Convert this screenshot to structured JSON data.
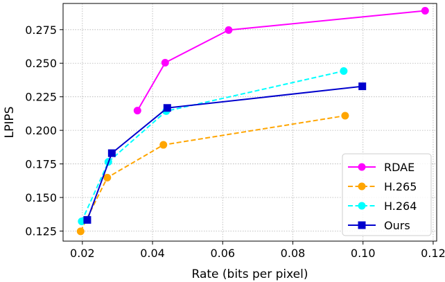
{
  "chart_data": {
    "type": "line",
    "title": "",
    "xlabel": "Rate (bits per pixel)",
    "ylabel": "LPIPS",
    "xlim": [
      0.0145,
      0.121
    ],
    "ylim": [
      0.1175,
      0.2945
    ],
    "x_ticks": [
      "0.02",
      "0.04",
      "0.06",
      "0.08",
      "0.10",
      "0.12"
    ],
    "x_tick_values": [
      0.02,
      0.04,
      0.06,
      0.08,
      0.1,
      0.12
    ],
    "y_ticks": [
      "0.125",
      "0.150",
      "0.175",
      "0.200",
      "0.225",
      "0.250",
      "0.275"
    ],
    "y_tick_values": [
      0.125,
      0.15,
      0.175,
      0.2,
      0.225,
      0.25,
      0.275
    ],
    "grid": true,
    "legend_position": "bottom-right",
    "series": [
      {
        "name": "RDAE",
        "color": "#ff00ff",
        "dashed": false,
        "marker": "circle",
        "x": [
          0.0357,
          0.0436,
          0.0617,
          0.1177
        ],
        "y": [
          0.2147,
          0.2504,
          0.2747,
          0.2891
        ]
      },
      {
        "name": "H.265",
        "color": "#ffa500",
        "dashed": true,
        "marker": "circle",
        "x": [
          0.0195,
          0.0271,
          0.0431,
          0.0949
        ],
        "y": [
          0.1248,
          0.1648,
          0.1892,
          0.2109
        ]
      },
      {
        "name": "H.264",
        "color": "#00ffff",
        "dashed": true,
        "marker": "circle",
        "x": [
          0.0198,
          0.0274,
          0.0439,
          0.0945
        ],
        "y": [
          0.1322,
          0.1765,
          0.2143,
          0.2442
        ]
      },
      {
        "name": "Ours",
        "color": "#0000cd",
        "dashed": false,
        "marker": "square",
        "x": [
          0.0214,
          0.0284,
          0.0442,
          0.0998
        ],
        "y": [
          0.1333,
          0.183,
          0.2167,
          0.2328
        ]
      }
    ]
  }
}
